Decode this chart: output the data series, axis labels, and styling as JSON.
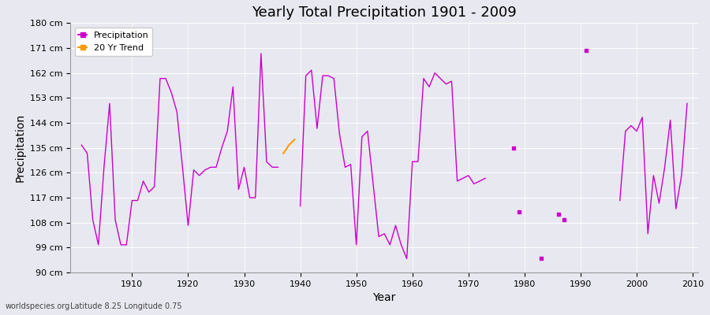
{
  "title": "Yearly Total Precipitation 1901 - 2009",
  "xlabel": "Year",
  "ylabel": "Precipitation",
  "subtitle": "Latitude 8.25 Longitude 0.75",
  "watermark": "worldspecies.org",
  "line_color": "#cc00cc",
  "trend_color": "#ff9900",
  "bg_color": "#e8e8f0",
  "grid_color": "#ffffff",
  "ylim": [
    90,
    180
  ],
  "yticks": [
    90,
    99,
    108,
    117,
    126,
    135,
    144,
    153,
    162,
    171,
    180
  ],
  "ytick_labels": [
    "90 cm",
    "99 cm",
    "108 cm",
    "117 cm",
    "126 cm",
    "135 cm",
    "144 cm",
    "153 cm",
    "162 cm",
    "171 cm",
    "180 cm"
  ],
  "xlim": [
    1899,
    2011
  ],
  "xticks": [
    1910,
    1920,
    1930,
    1940,
    1950,
    1960,
    1970,
    1980,
    1990,
    2000,
    2010
  ],
  "segments": [
    {
      "years": [
        1901,
        1902,
        1903,
        1904,
        1905,
        1906,
        1907,
        1908,
        1909,
        1910,
        1911,
        1912,
        1913,
        1914,
        1915,
        1916,
        1917,
        1918,
        1919,
        1920,
        1921,
        1922,
        1923,
        1924,
        1925,
        1926,
        1927,
        1928,
        1929,
        1930,
        1931,
        1932,
        1933,
        1934,
        1935,
        1936
      ],
      "vals": [
        136,
        133,
        109,
        100,
        128,
        151,
        109,
        100,
        100,
        116,
        116,
        123,
        119,
        121,
        160,
        160,
        155,
        148,
        128,
        107,
        127,
        125,
        127,
        128,
        128,
        135,
        141,
        157,
        120,
        128,
        117,
        117,
        169,
        130,
        128,
        128
      ]
    },
    {
      "years": [
        1940,
        1941,
        1942,
        1943,
        1944,
        1945,
        1946,
        1947,
        1948,
        1949,
        1950,
        1951,
        1952,
        1953,
        1954,
        1955,
        1956,
        1957,
        1958,
        1959,
        1960,
        1961,
        1962,
        1963,
        1964,
        1965,
        1966,
        1967,
        1968,
        1969,
        1970,
        1971,
        1972,
        1973
      ],
      "vals": [
        114,
        161,
        163,
        142,
        161,
        161,
        160,
        140,
        128,
        129,
        100,
        139,
        141,
        122,
        103,
        104,
        100,
        107,
        100,
        95,
        130,
        130,
        160,
        157,
        162,
        160,
        158,
        159,
        123,
        124,
        125,
        122,
        123,
        124
      ]
    },
    {
      "years": [
        1997,
        1998,
        1999,
        2000,
        2001,
        2002,
        2003,
        2004,
        2005,
        2006,
        2007,
        2008,
        2009
      ],
      "vals": [
        116,
        141,
        143,
        141,
        146,
        104,
        125,
        115,
        128,
        145,
        113,
        125,
        151
      ]
    }
  ],
  "isolated_dots": [
    [
      1978,
      135
    ],
    [
      1979,
      112
    ],
    [
      1983,
      95
    ],
    [
      1986,
      111
    ],
    [
      1987,
      109
    ],
    [
      1991,
      170
    ]
  ],
  "trend_years": [
    1937,
    1938,
    1939
  ],
  "trend_vals": [
    133,
    136,
    138
  ]
}
